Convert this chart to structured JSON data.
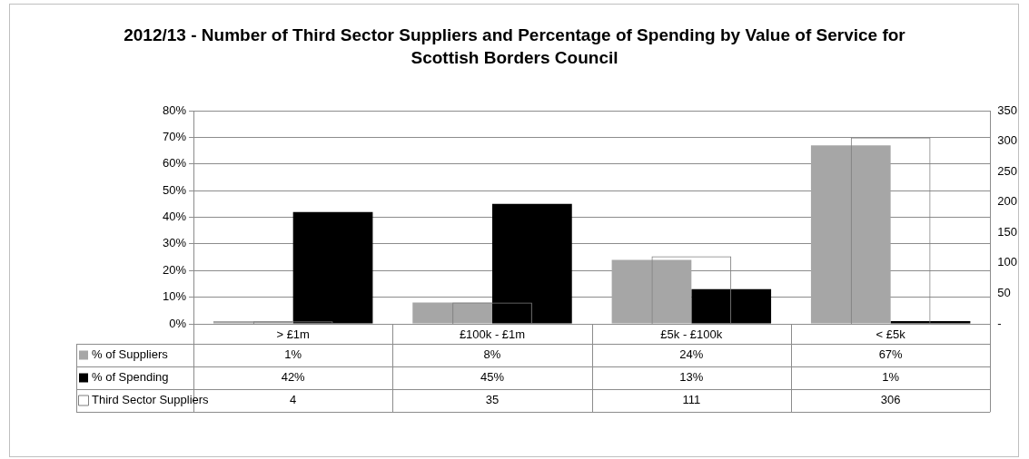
{
  "chart_data": {
    "type": "bar",
    "title": "2012/13 - Number of Third Sector Suppliers and Percentage of Spending by Value of Service for Scottish Borders Council",
    "categories": [
      "> £1m",
      "£100k - £1m",
      "£5k - £100k",
      "< £5k"
    ],
    "series": [
      {
        "name": "% of Suppliers",
        "color": "#a6a6a6",
        "values": [
          1,
          8,
          24,
          67
        ],
        "value_labels": [
          "1%",
          "8%",
          "24%",
          "67%"
        ]
      },
      {
        "name": "% of Spending",
        "color": "#000000",
        "values": [
          42,
          45,
          13,
          1
        ],
        "value_labels": [
          "42%",
          "45%",
          "13%",
          "1%"
        ]
      },
      {
        "name": "Third Sector Suppliers",
        "color": "#7f7f7f",
        "axis": "y2",
        "values": [
          4,
          35,
          111,
          306
        ],
        "value_labels": [
          "4",
          "35",
          "111",
          "306"
        ]
      }
    ],
    "ylim": [
      0,
      80
    ],
    "yticks": [
      {
        "value": 0,
        "label": "0%"
      },
      {
        "value": 10,
        "label": "10%"
      },
      {
        "value": 20,
        "label": "20%"
      },
      {
        "value": 30,
        "label": "30%"
      },
      {
        "value": 40,
        "label": "40%"
      },
      {
        "value": 50,
        "label": "50%"
      },
      {
        "value": 60,
        "label": "60%"
      },
      {
        "value": 70,
        "label": "70%"
      },
      {
        "value": 80,
        "label": "80%"
      }
    ],
    "y2lim": [
      0,
      350
    ],
    "y2ticks": [
      {
        "value": 0,
        "label": "-"
      },
      50,
      100,
      150,
      200,
      250,
      300,
      350
    ],
    "grid": "y",
    "legend": "bottom"
  }
}
